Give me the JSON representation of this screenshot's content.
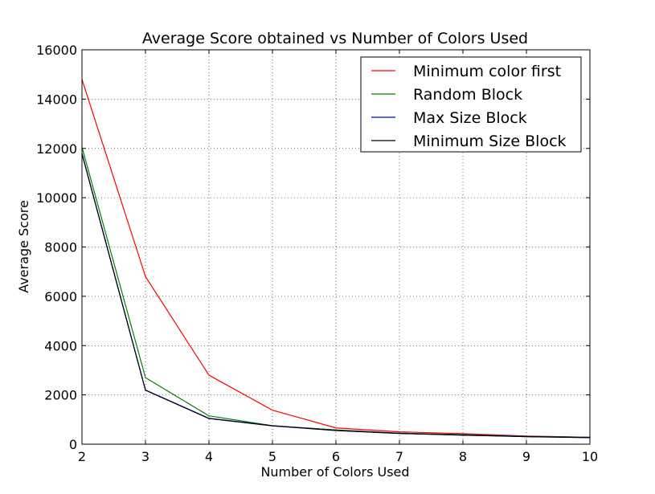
{
  "chart_data": {
    "type": "line",
    "title": "Average Score obtained vs Number of Colors Used",
    "xlabel": "Number of Colors Used",
    "ylabel": "Average Score",
    "xlim": [
      2,
      10
    ],
    "ylim": [
      0,
      16000
    ],
    "xticks": [
      2,
      3,
      4,
      5,
      6,
      7,
      8,
      9,
      10
    ],
    "yticks": [
      0,
      2000,
      4000,
      6000,
      8000,
      10000,
      12000,
      14000,
      16000
    ],
    "grid": true,
    "legend_position": "top-right",
    "x": [
      2,
      3,
      4,
      5,
      6,
      7,
      8,
      9,
      10
    ],
    "series": [
      {
        "name": "Minimum color first",
        "color": "#ff0000",
        "values": [
          14800,
          6800,
          2800,
          1380,
          660,
          500,
          430,
          330,
          280
        ]
      },
      {
        "name": "Random Block",
        "color": "#008000",
        "values": [
          12050,
          2700,
          1150,
          750,
          580,
          450,
          390,
          320,
          280
        ]
      },
      {
        "name": "Max Size Block",
        "color": "#0000ff",
        "values": [
          11800,
          2200,
          1050,
          750,
          560,
          440,
          370,
          310,
          270
        ]
      },
      {
        "name": "Minimum Size Block",
        "color": "#000000",
        "values": [
          11780,
          2190,
          1040,
          745,
          555,
          435,
          365,
          305,
          265
        ]
      }
    ]
  }
}
